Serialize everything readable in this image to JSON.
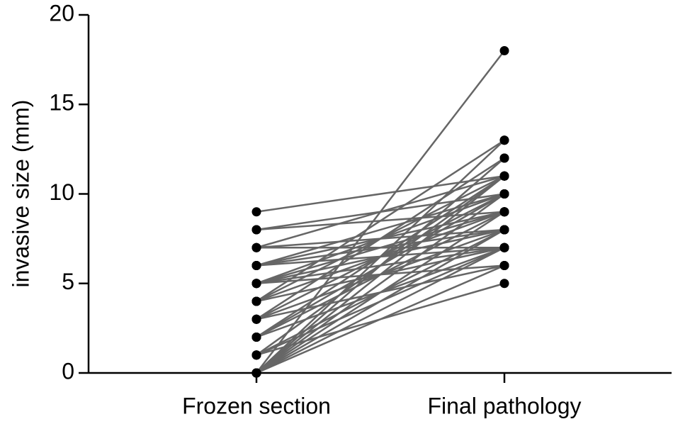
{
  "chart_data": {
    "type": "paired",
    "ylabel": "invasive size (mm)",
    "categories": [
      "Frozen section",
      "Final pathology"
    ],
    "pairs": [
      [
        9,
        11
      ],
      [
        8,
        10
      ],
      [
        8,
        9
      ],
      [
        7,
        11
      ],
      [
        7,
        8
      ],
      [
        7,
        7
      ],
      [
        6,
        10
      ],
      [
        6,
        8
      ],
      [
        6,
        7
      ],
      [
        6,
        9
      ],
      [
        5,
        10
      ],
      [
        5,
        8
      ],
      [
        5,
        7
      ],
      [
        5,
        9
      ],
      [
        5,
        6
      ],
      [
        4,
        9
      ],
      [
        4,
        7
      ],
      [
        4,
        11
      ],
      [
        3,
        8
      ],
      [
        3,
        12
      ],
      [
        3,
        6
      ],
      [
        2,
        7
      ],
      [
        2,
        10
      ],
      [
        2,
        9
      ],
      [
        1,
        5
      ],
      [
        1,
        8
      ],
      [
        1,
        11
      ],
      [
        1,
        7
      ],
      [
        0,
        18
      ],
      [
        0,
        13
      ],
      [
        0,
        12
      ],
      [
        0,
        10
      ],
      [
        0,
        11
      ],
      [
        0,
        6
      ],
      [
        0,
        9
      ],
      [
        0,
        8
      ],
      [
        0,
        7
      ],
      [
        4,
        13
      ],
      [
        2,
        11
      ],
      [
        3,
        10
      ]
    ],
    "line_color": "#666666",
    "point_color": "#000000",
    "ylim": [
      0,
      20
    ],
    "yticks": [
      0,
      5,
      10,
      15,
      20
    ]
  }
}
